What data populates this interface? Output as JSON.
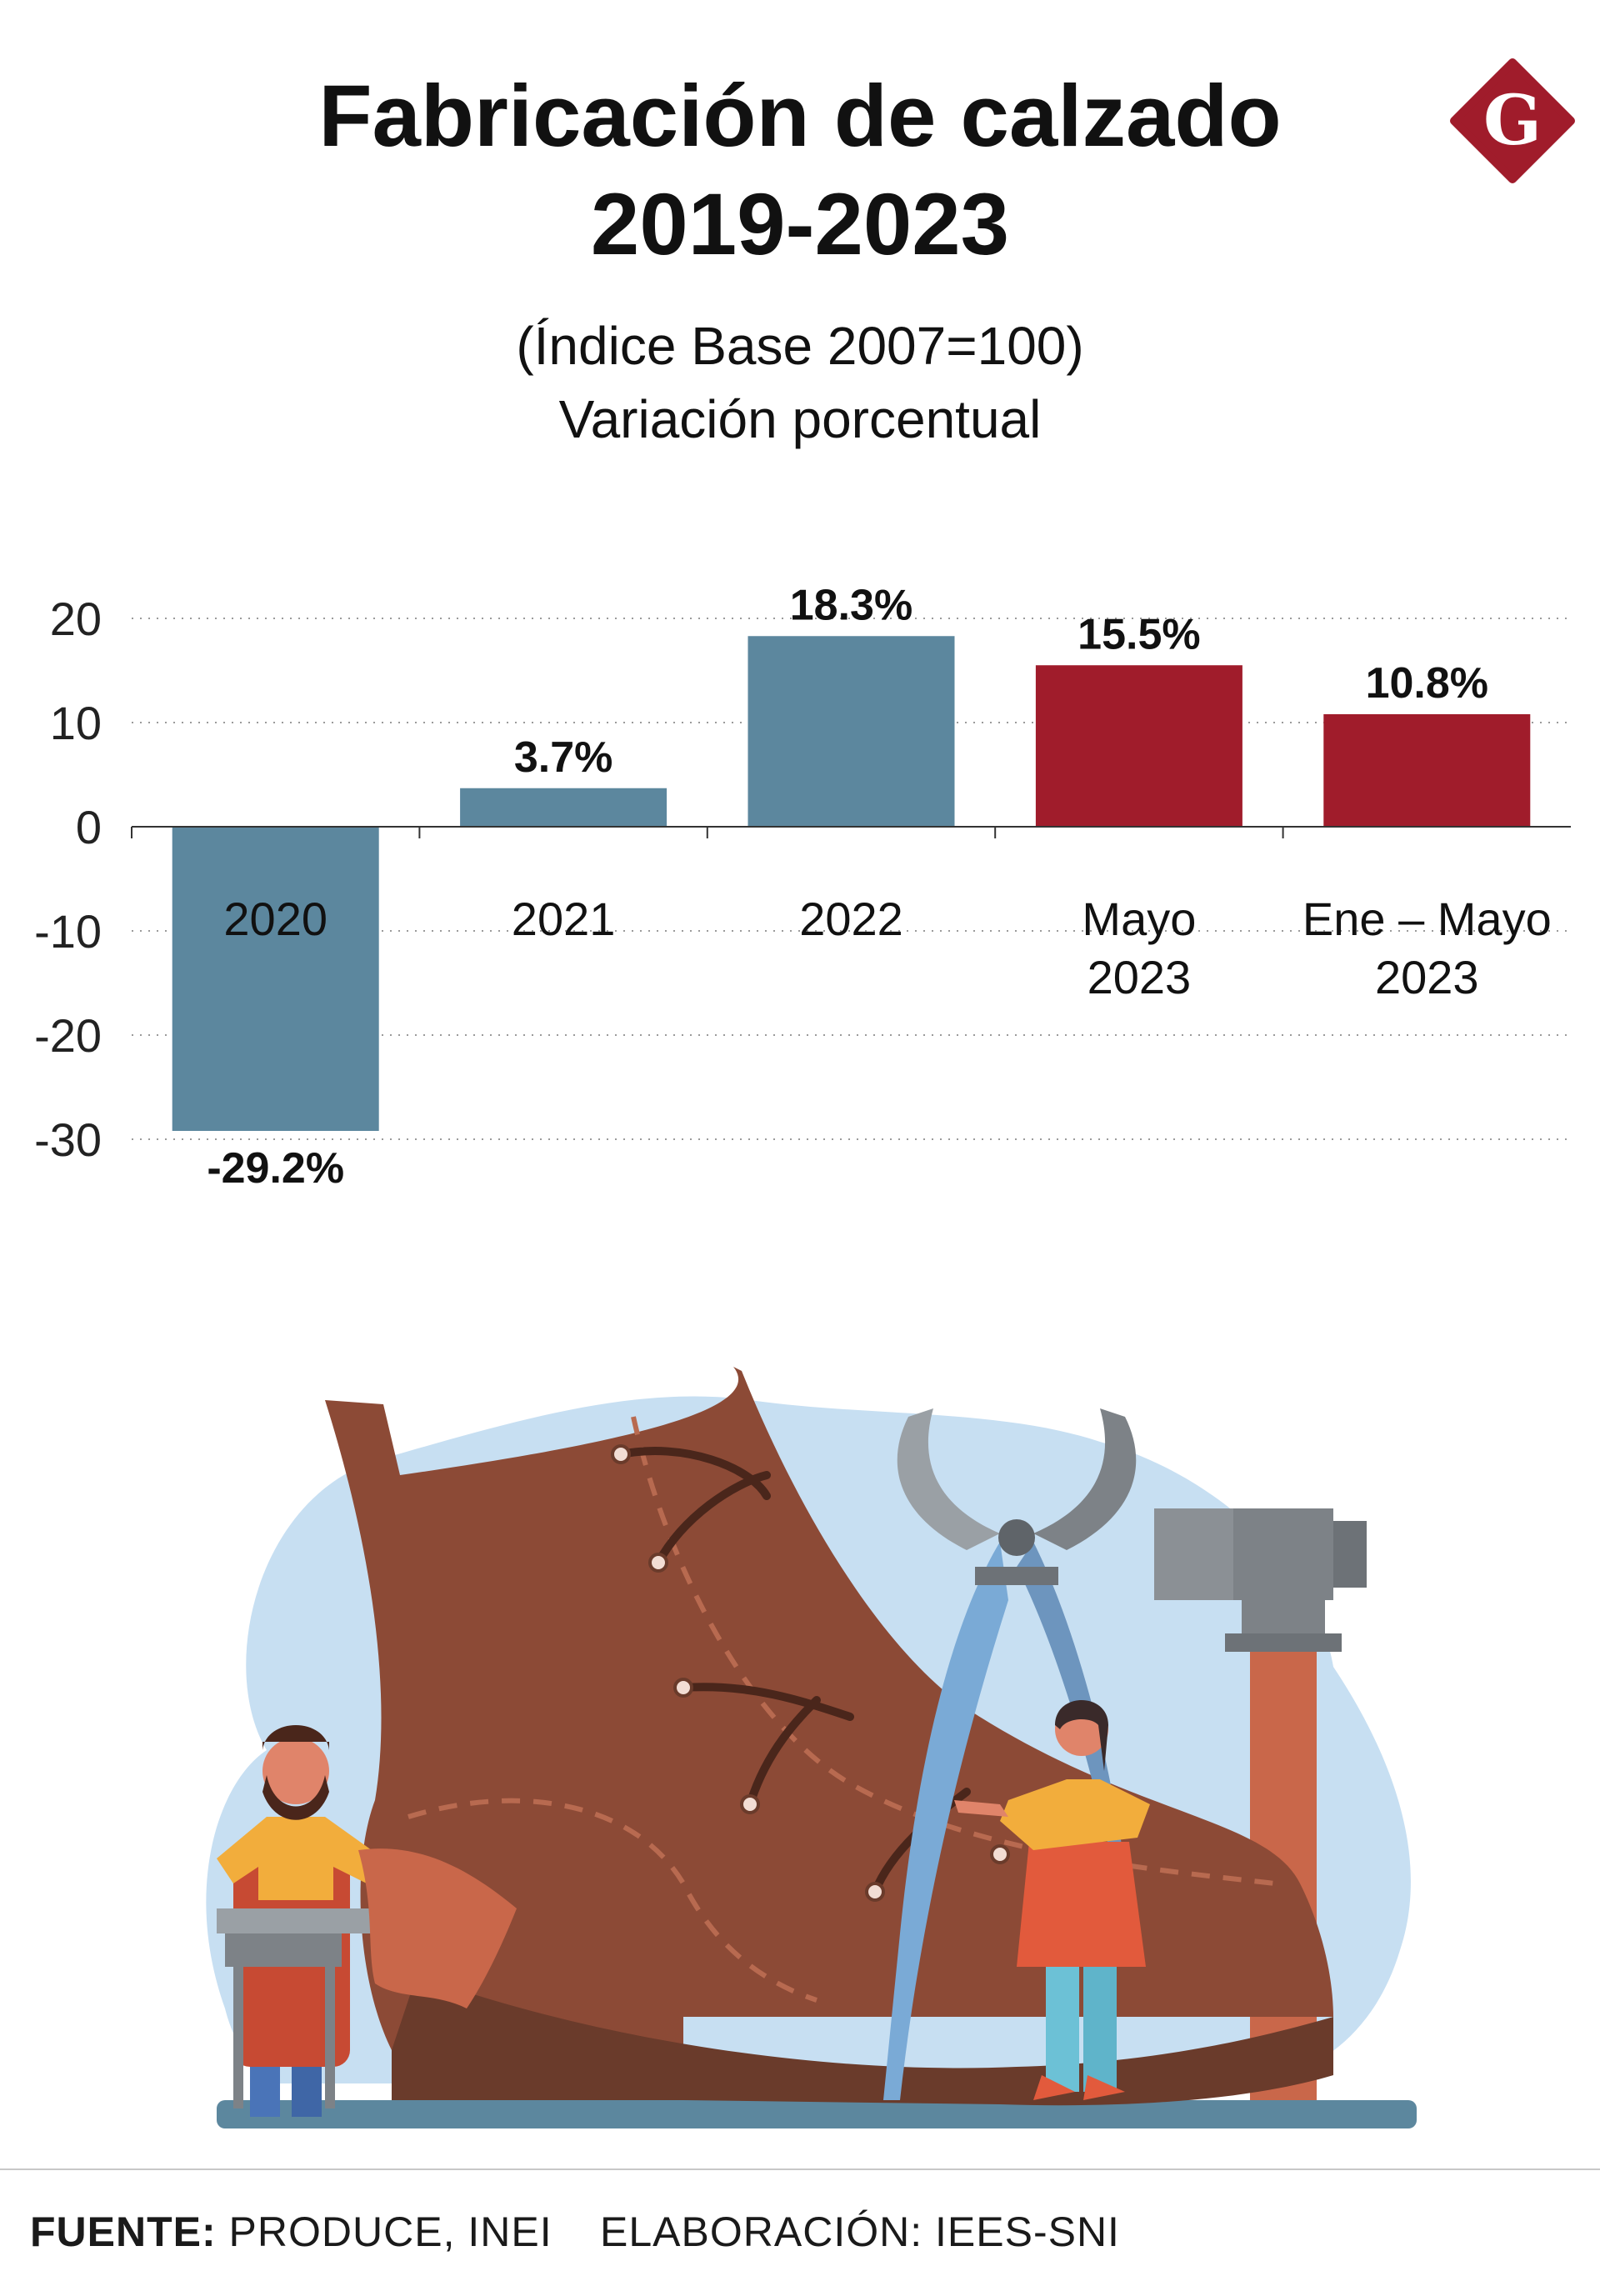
{
  "header": {
    "title_line_1": "Fabricación de calzado",
    "title_line_2": "2019-2023",
    "subtitle_line_1": "(Índice Base 2007=100)",
    "subtitle_line_2": "Variación porcentual",
    "logo_letter": "G",
    "logo_color": "#a01c2b"
  },
  "chart_data": {
    "type": "bar",
    "categories": [
      [
        "2020"
      ],
      [
        "2021"
      ],
      [
        "2022"
      ],
      [
        "Mayo",
        "2023"
      ],
      [
        "Ene – Mayo",
        "2023"
      ]
    ],
    "values": [
      -29.2,
      3.7,
      18.3,
      15.5,
      10.8
    ],
    "value_labels": [
      "-29.2%",
      "3.7%",
      "18.3%",
      "15.5%",
      "10.8%"
    ],
    "bar_colors": [
      "#5c879e",
      "#5c879e",
      "#5c879e",
      "#a01c2b",
      "#a01c2b"
    ],
    "yticks": [
      20,
      10,
      0,
      -10,
      -20,
      -30
    ],
    "ytick_labels": [
      "20",
      "10",
      "0",
      "-10",
      "-20",
      "-30"
    ],
    "ylim": [
      -30,
      22
    ],
    "grid": "dotted horizontal",
    "legend": "none"
  },
  "footer": {
    "source_label": "FUENTE:",
    "source_value": " PRODUCE, INEI",
    "credit_label": "ELABORACIÓN:",
    "credit_value": " IEES-SNI"
  }
}
